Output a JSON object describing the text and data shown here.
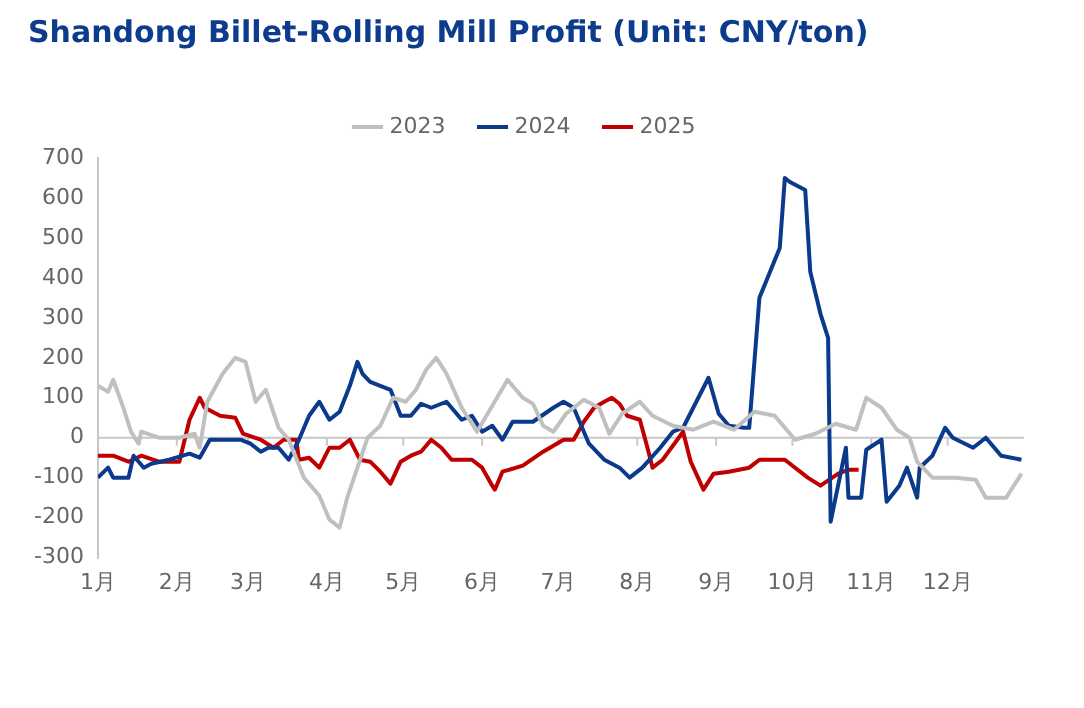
{
  "chart_data": {
    "type": "line",
    "title": "Shandong Billet-Rolling Mill Profit (Unit: CNY/ton)",
    "xlim": [
      "--01-01",
      "--12-31"
    ],
    "xticks": [
      {
        "value": "--01-01",
        "label": "1月"
      },
      {
        "value": "--02-01",
        "label": "2月"
      },
      {
        "value": "--03-01",
        "label": "3月"
      },
      {
        "value": "--04-01",
        "label": "4月"
      },
      {
        "value": "--05-01",
        "label": "5月"
      },
      {
        "value": "--06-01",
        "label": "6月"
      },
      {
        "value": "--07-01",
        "label": "7月"
      },
      {
        "value": "--08-01",
        "label": "8月"
      },
      {
        "value": "--09-01",
        "label": "9月"
      },
      {
        "value": "--10-01",
        "label": "10月"
      },
      {
        "value": "--11-01",
        "label": "11月"
      },
      {
        "value": "--12-01",
        "label": "12月"
      }
    ],
    "ylim": [
      -300,
      700
    ],
    "yticks": [
      -300,
      -200,
      -100,
      0,
      100,
      200,
      300,
      400,
      500,
      600,
      700
    ],
    "grid": false,
    "legend": "top",
    "marker": "none",
    "line_style": "solid",
    "ref_lines": [
      {
        "axis": "y",
        "value": 0,
        "color": "#c8c8c8"
      }
    ],
    "series": [
      {
        "name": "2023",
        "color": "#c0c0c0",
        "x": [
          "--01-01",
          "--01-05",
          "--01-07",
          "--01-11",
          "--01-14",
          "--01-17",
          "--01-18",
          "--01-25",
          "--02-02",
          "--02-08",
          "--02-10",
          "--02-13",
          "--02-19",
          "--02-24",
          "--02-28",
          "--03-04",
          "--03-08",
          "--03-13",
          "--03-17",
          "--03-23",
          "--03-29",
          "--04-02",
          "--04-06",
          "--04-09",
          "--04-13",
          "--04-17",
          "--04-22",
          "--04-27",
          "--05-02",
          "--05-06",
          "--05-10",
          "--05-14",
          "--05-18",
          "--05-24",
          "--05-30",
          "--06-05",
          "--06-11",
          "--06-17",
          "--06-21",
          "--06-25",
          "--06-29",
          "--07-04",
          "--07-11",
          "--07-17",
          "--07-21",
          "--07-26",
          "--08-02",
          "--08-07",
          "--08-15",
          "--08-23",
          "--08-31",
          "--09-08",
          "--09-16",
          "--09-24",
          "--10-02",
          "--10-10",
          "--10-18",
          "--10-26",
          "--10-30",
          "--11-05",
          "--11-11",
          "--11-16",
          "--11-19",
          "--11-25",
          "--12-04",
          "--12-12",
          "--12-16",
          "--12-24",
          "--12-30"
        ],
        "values": [
          130,
          115,
          145,
          75,
          15,
          -15,
          15,
          0,
          0,
          10,
          -25,
          90,
          160,
          200,
          190,
          90,
          120,
          25,
          -5,
          -100,
          -145,
          -205,
          -225,
          -150,
          -75,
          0,
          30,
          100,
          90,
          120,
          170,
          200,
          160,
          75,
          15,
          80,
          145,
          100,
          85,
          30,
          15,
          60,
          95,
          75,
          10,
          60,
          90,
          55,
          30,
          20,
          40,
          20,
          65,
          55,
          -5,
          10,
          35,
          20,
          100,
          75,
          20,
          0,
          -60,
          -100,
          -100,
          -105,
          -150,
          -150,
          -90
        ]
      },
      {
        "name": "2024",
        "color": "#0b3a8c",
        "x": [
          "--01-01",
          "--01-05",
          "--01-07",
          "--01-13",
          "--01-15",
          "--01-19",
          "--01-22",
          "--01-29",
          "--02-06",
          "--02-10",
          "--02-14",
          "--02-19",
          "--02-26",
          "--03-02",
          "--03-06",
          "--03-09",
          "--03-13",
          "--03-17",
          "--03-21",
          "--03-25",
          "--03-29",
          "--04-02",
          "--04-06",
          "--04-10",
          "--04-13",
          "--04-15",
          "--04-18",
          "--04-22",
          "--04-26",
          "--04-30",
          "--05-04",
          "--05-08",
          "--05-12",
          "--05-18",
          "--05-24",
          "--05-28",
          "--06-01",
          "--06-05",
          "--06-09",
          "--06-13",
          "--06-21",
          "--06-29",
          "--07-03",
          "--07-07",
          "--07-13",
          "--07-19",
          "--07-25",
          "--07-29",
          "--08-03",
          "--08-10",
          "--08-15",
          "--08-19",
          "--08-29",
          "--09-02",
          "--09-06",
          "--09-12",
          "--09-14",
          "--09-18",
          "--09-26",
          "--09-28",
          "--09-30",
          "--10-06",
          "--10-08",
          "--10-12",
          "--10-15",
          "--10-16",
          "--10-22",
          "--10-23",
          "--10-28",
          "--10-30",
          "--11-05",
          "--11-07",
          "--11-12",
          "--11-15",
          "--11-19",
          "--11-20",
          "--11-25",
          "--11-30",
          "--12-03",
          "--12-11",
          "--12-16",
          "--12-22",
          "--12-30"
        ],
        "values": [
          -100,
          -75,
          -100,
          -100,
          -45,
          -75,
          -65,
          -55,
          -40,
          -50,
          -5,
          -5,
          -5,
          -15,
          -35,
          -25,
          -25,
          -55,
          -5,
          55,
          90,
          45,
          65,
          130,
          190,
          160,
          140,
          130,
          120,
          55,
          55,
          85,
          75,
          90,
          45,
          55,
          15,
          30,
          -5,
          40,
          40,
          75,
          90,
          75,
          -15,
          -55,
          -75,
          -100,
          -75,
          -25,
          15,
          25,
          150,
          60,
          30,
          25,
          25,
          350,
          475,
          650,
          640,
          620,
          415,
          310,
          250,
          -210,
          -25,
          -150,
          -150,
          -30,
          -5,
          -160,
          -120,
          -75,
          -150,
          -75,
          -45,
          25,
          0,
          -25,
          0,
          -45,
          -55
        ]
      },
      {
        "name": "2025",
        "color": "#c00000",
        "x": [
          "--01-01",
          "--01-07",
          "--01-13",
          "--01-18",
          "--01-25",
          "--02-02",
          "--02-06",
          "--02-10",
          "--02-12",
          "--02-18",
          "--02-24",
          "--02-27",
          "--03-06",
          "--03-11",
          "--03-15",
          "--03-20",
          "--03-21",
          "--03-25",
          "--03-29",
          "--04-02",
          "--04-06",
          "--04-10",
          "--04-14",
          "--04-18",
          "--04-22",
          "--04-26",
          "--04-30",
          "--05-04",
          "--05-08",
          "--05-12",
          "--05-16",
          "--05-20",
          "--05-28",
          "--06-01",
          "--06-05",
          "--06-06",
          "--06-09",
          "--06-17",
          "--06-25",
          "--07-03",
          "--07-07",
          "--07-11",
          "--07-15",
          "--07-19",
          "--07-22",
          "--07-25",
          "--07-28",
          "--08-02",
          "--08-05",
          "--08-07",
          "--08-11",
          "--08-19",
          "--08-22",
          "--08-27",
          "--08-31",
          "--09-06",
          "--09-14",
          "--09-18",
          "--09-28",
          "--10-07",
          "--10-12",
          "--10-19",
          "--10-23",
          "--10-27"
        ],
        "values": [
          -45,
          -45,
          -60,
          -45,
          -60,
          -60,
          45,
          100,
          75,
          55,
          50,
          10,
          -5,
          -25,
          -5,
          -5,
          -55,
          -50,
          -75,
          -25,
          -25,
          -5,
          -55,
          -60,
          -85,
          -115,
          -60,
          -45,
          -35,
          -5,
          -25,
          -55,
          -55,
          -75,
          -120,
          -130,
          -85,
          -70,
          -35,
          -5,
          -5,
          40,
          75,
          90,
          100,
          85,
          55,
          45,
          -25,
          -75,
          -55,
          15,
          -60,
          -130,
          -90,
          -85,
          -75,
          -55,
          -55,
          -100,
          -120,
          -90,
          -80,
          -80
        ]
      }
    ]
  }
}
